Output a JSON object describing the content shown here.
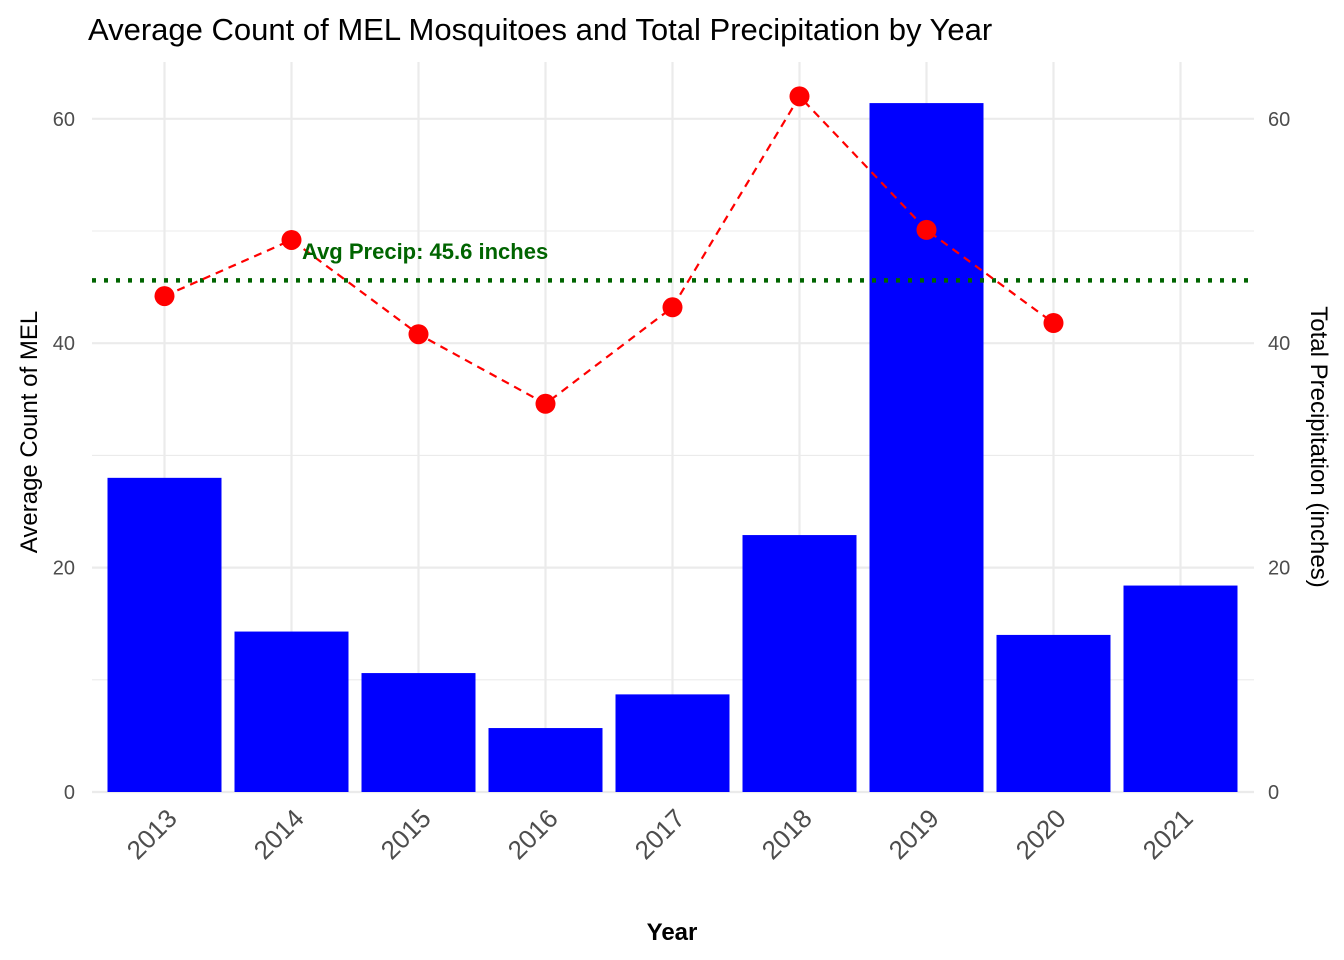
{
  "chart_data": {
    "type": "bar",
    "title": "Average Count of MEL Mosquitoes and Total Precipitation by Year",
    "xlabel": "Year",
    "ylabel": "Average Count of MEL",
    "y2label": "Total Precipitation (inches)",
    "categories": [
      "2013",
      "2014",
      "2015",
      "2016",
      "2017",
      "2018",
      "2019",
      "2020",
      "2021"
    ],
    "ylim": [
      0,
      65
    ],
    "yticks": [
      0,
      20,
      40,
      60
    ],
    "y2ticks": [
      0,
      20,
      40,
      60
    ],
    "grid": true,
    "series": [
      {
        "type": "bar",
        "axis": "left",
        "color": "#0000ff",
        "values": [
          28.0,
          14.3,
          10.6,
          5.7,
          8.7,
          22.9,
          61.4,
          14.0,
          18.4
        ]
      },
      {
        "type": "line",
        "axis": "right",
        "color": "#ff0000",
        "line_style": "dashed",
        "markers": true,
        "values": [
          44.2,
          49.2,
          40.8,
          34.6,
          43.2,
          62.0,
          50.1,
          41.8,
          null
        ]
      }
    ],
    "reference_line": {
      "axis": "right",
      "value": 45.6,
      "color": "#006400",
      "line_style": "dotted",
      "label": "Avg Precip: 45.6 inches"
    }
  }
}
